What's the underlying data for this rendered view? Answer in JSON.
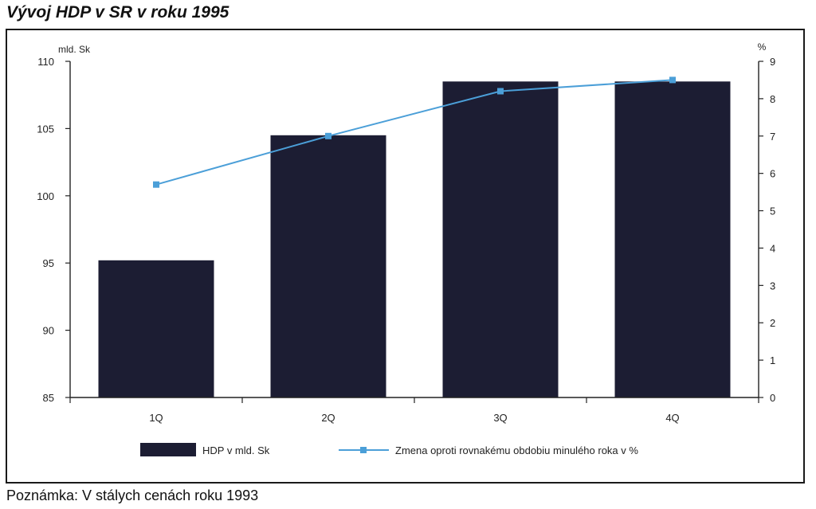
{
  "title": "Vývoj HDP v SR v roku 1995",
  "note": "Poznámka: V stálych cenách roku 1993",
  "chart_data": {
    "type": "bar",
    "categories": [
      "1Q",
      "2Q",
      "3Q",
      "4Q"
    ],
    "series": [
      {
        "name": "HDP v mld. Sk",
        "type": "bar",
        "axis": "left",
        "color": "#1c1d33",
        "values": [
          95.2,
          104.5,
          108.5,
          108.5
        ]
      },
      {
        "name": "Zmena oproti rovnakému obdobiu minulého roka v %",
        "type": "line",
        "axis": "right",
        "color": "#4b9fd8",
        "marker": "square",
        "values": [
          5.7,
          7.0,
          8.2,
          8.5
        ]
      }
    ],
    "ylabel": "mld. Sk",
    "ylim": [
      85,
      110
    ],
    "yticks": [
      85,
      90,
      95,
      100,
      105,
      110
    ],
    "y2label": "%",
    "y2lim": [
      0,
      9
    ],
    "y2ticks": [
      0,
      1,
      2,
      3,
      4,
      5,
      6,
      7,
      8,
      9
    ],
    "grid": false,
    "legend_position": "bottom"
  }
}
